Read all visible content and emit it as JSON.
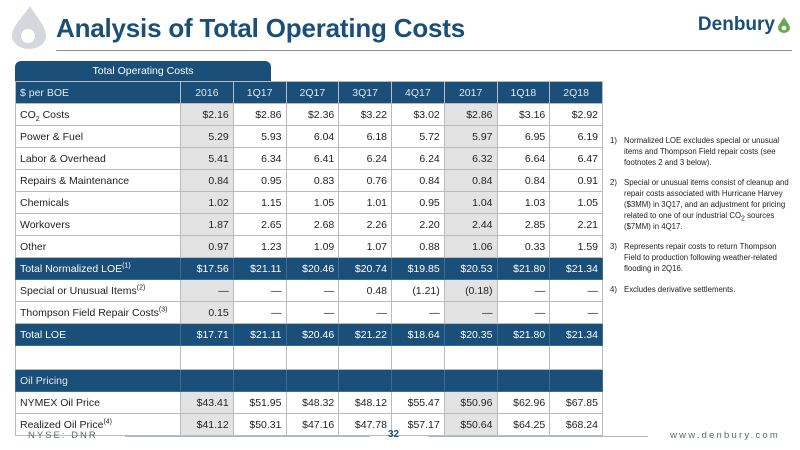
{
  "header": {
    "title": "Analysis of Total Operating Costs",
    "brand": "Denbury"
  },
  "table": {
    "tab_label": "Total Operating Costs",
    "columns": [
      "$ per BOE",
      "2016",
      "1Q17",
      "2Q17",
      "3Q17",
      "4Q17",
      "2017",
      "1Q18",
      "2Q18"
    ],
    "rows": [
      {
        "label": "CO",
        "label_sub": "2",
        "label_tail": " Costs",
        "values": [
          "$2.16",
          "$2.86",
          "$2.36",
          "$3.22",
          "$3.02",
          "$2.86",
          "$3.16",
          "$2.92"
        ]
      },
      {
        "label": "Power & Fuel",
        "values": [
          "5.29",
          "5.93",
          "6.04",
          "6.18",
          "5.72",
          "5.97",
          "6.95",
          "6.19"
        ]
      },
      {
        "label": "Labor & Overhead",
        "values": [
          "5.41",
          "6.34",
          "6.41",
          "6.24",
          "6.24",
          "6.32",
          "6.64",
          "6.47"
        ]
      },
      {
        "label": "Repairs & Maintenance",
        "values": [
          "0.84",
          "0.95",
          "0.83",
          "0.76",
          "0.84",
          "0.84",
          "0.84",
          "0.91"
        ]
      },
      {
        "label": "Chemicals",
        "values": [
          "1.02",
          "1.15",
          "1.05",
          "1.01",
          "0.95",
          "1.04",
          "1.03",
          "1.05"
        ]
      },
      {
        "label": "Workovers",
        "values": [
          "1.87",
          "2.65",
          "2.68",
          "2.26",
          "2.20",
          "2.44",
          "2.85",
          "2.21"
        ]
      },
      {
        "label": "Other",
        "values": [
          "0.97",
          "1.23",
          "1.09",
          "1.07",
          "0.88",
          "1.06",
          "0.33",
          "1.59"
        ]
      }
    ],
    "total_normalized": {
      "label": "Total Normalized LOE",
      "sup": "(1)",
      "values": [
        "$17.56",
        "$21.11",
        "$20.46",
        "$20.74",
        "$19.85",
        "$20.53",
        "$21.80",
        "$21.34"
      ]
    },
    "special_rows": [
      {
        "label": "Special or Unusual Items",
        "sup": "(2)",
        "values": [
          "—",
          "—",
          "—",
          "0.48",
          "(1.21)",
          "(0.18)",
          "—",
          "—"
        ]
      },
      {
        "label": "Thompson Field Repair Costs",
        "sup": "(3)",
        "values": [
          "0.15",
          "—",
          "—",
          "—",
          "—",
          "—",
          "—",
          "—"
        ]
      }
    ],
    "total_loe": {
      "label": "Total LOE",
      "values": [
        "$17.71",
        "$21.11",
        "$20.46",
        "$21.22",
        "$18.64",
        "$20.35",
        "$21.80",
        "$21.34"
      ]
    },
    "oil_section": {
      "label": "Oil Pricing"
    },
    "oil_rows": [
      {
        "label": "NYMEX Oil Price",
        "values": [
          "$43.41",
          "$51.95",
          "$48.32",
          "$48.12",
          "$55.47",
          "$50.96",
          "$62.96",
          "$67.85"
        ]
      },
      {
        "label": "Realized Oil Price",
        "sup": "(4)",
        "values": [
          "$41.12",
          "$50.31",
          "$47.16",
          "$47.78",
          "$57.17",
          "$50.64",
          "$64.25",
          "$68.24"
        ]
      }
    ]
  },
  "footnotes": [
    {
      "num": "1)",
      "text": "Normalized LOE excludes special or unusual items and Thompson Field repair costs (see footnotes 2 and 3 below)."
    },
    {
      "num": "2)",
      "text_a": "Special or unusual items consist of cleanup and repair costs associated with Hurricane Harvey ($3MM) in 3Q17, and an adjustment for pricing related to one of our industrial CO",
      "text_sub": "2",
      "text_b": " sources ($7MM) in 4Q17."
    },
    {
      "num": "3)",
      "text": "Represents repair costs to return Thompson Field to production following weather-related flooding in 2Q16."
    },
    {
      "num": "4)",
      "text": "Excludes derivative settlements."
    }
  ],
  "footer": {
    "left": "NYSE: DNR",
    "page": "32",
    "right": "www.denbury.com"
  },
  "colors": {
    "brand_blue": "#1a4f7a",
    "accent_green": "#6aa84f",
    "shade_gray": "#e3e3e3"
  },
  "icons": {
    "logo": "water-drop-icon",
    "brand_mark": "leaf-drop-icon"
  }
}
